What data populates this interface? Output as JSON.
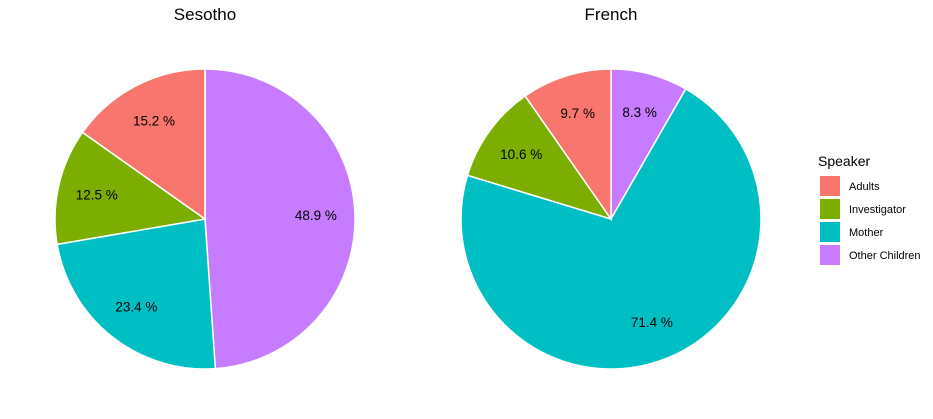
{
  "chart_data": {
    "type": "pie",
    "legend": {
      "title": "Speaker",
      "placement": "right",
      "items": [
        {
          "label": "Adults",
          "color": "#F8766D"
        },
        {
          "label": "Investigator",
          "color": "#7CAE00"
        },
        {
          "label": "Mother",
          "color": "#00BFC4"
        },
        {
          "label": "Other Children",
          "color": "#C77CFF"
        }
      ]
    },
    "pies": [
      {
        "title": "Sesotho",
        "slices": [
          {
            "category": "Other Children",
            "value": 48.9,
            "label": "48.9 %"
          },
          {
            "category": "Mother",
            "value": 23.4,
            "label": "23.4 %"
          },
          {
            "category": "Investigator",
            "value": 12.5,
            "label": "12.5 %"
          },
          {
            "category": "Adults",
            "value": 15.2,
            "label": "15.2 %"
          }
        ]
      },
      {
        "title": "French",
        "slices": [
          {
            "category": "Other Children",
            "value": 8.3,
            "label": "8.3 %"
          },
          {
            "category": "Mother",
            "value": 71.4,
            "label": "71.4 %"
          },
          {
            "category": "Investigator",
            "value": 10.6,
            "label": "10.6 %"
          },
          {
            "category": "Adults",
            "value": 9.7,
            "label": "9.7 %"
          }
        ]
      }
    ]
  }
}
